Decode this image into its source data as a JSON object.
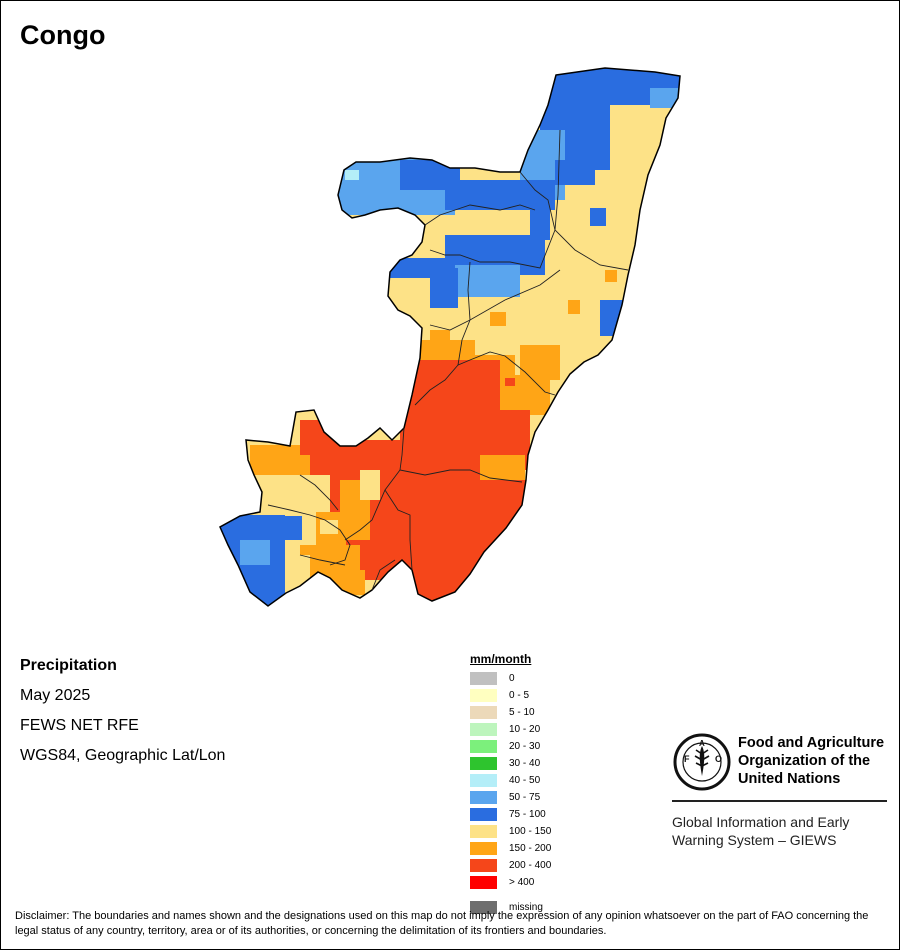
{
  "title": "Congo",
  "info": {
    "variable": "Precipitation",
    "period": "May 2025",
    "source": "FEWS NET RFE",
    "projection": "WGS84, Geographic Lat/Lon"
  },
  "legend": {
    "title": "mm/month",
    "items": [
      {
        "label": "0",
        "color": "#c0c0c0"
      },
      {
        "label": "0 - 5",
        "color": "#ffffc0"
      },
      {
        "label": "5 - 10",
        "color": "#ecd9b9"
      },
      {
        "label": "10 - 20",
        "color": "#bdf5bd"
      },
      {
        "label": "20 - 30",
        "color": "#7cf07c"
      },
      {
        "label": "30 - 40",
        "color": "#2ec42e"
      },
      {
        "label": "40 - 50",
        "color": "#b4eef8"
      },
      {
        "label": "50 - 75",
        "color": "#5aa5ee"
      },
      {
        "label": "75 - 100",
        "color": "#2a6de0"
      },
      {
        "label": "100 - 150",
        "color": "#fde287"
      },
      {
        "label": "150 - 200",
        "color": "#ffa516"
      },
      {
        "label": "200 - 400",
        "color": "#f5461a"
      },
      {
        "label": "> 400",
        "color": "#ff0000"
      }
    ],
    "missing": {
      "label": "missing",
      "color": "#6e6e6e"
    }
  },
  "organization": {
    "logo_text": "FAO",
    "logo_motto": "FIAT PANIS",
    "name_line1": "Food and Agriculture",
    "name_line2": "Organization of the",
    "name_line3": "United Nations",
    "system_line1": "Global Information and Early",
    "system_line2": "Warning System – GIEWS"
  },
  "disclaimer": "Disclaimer: The boundaries and names shown and the designations used on this map do not imply the expression of any opinion whatsoever on the part of FAO concerning the legal status of any country, territory, area or of its authorities, or concerning the delimitation of its frontiers and boundaries."
}
